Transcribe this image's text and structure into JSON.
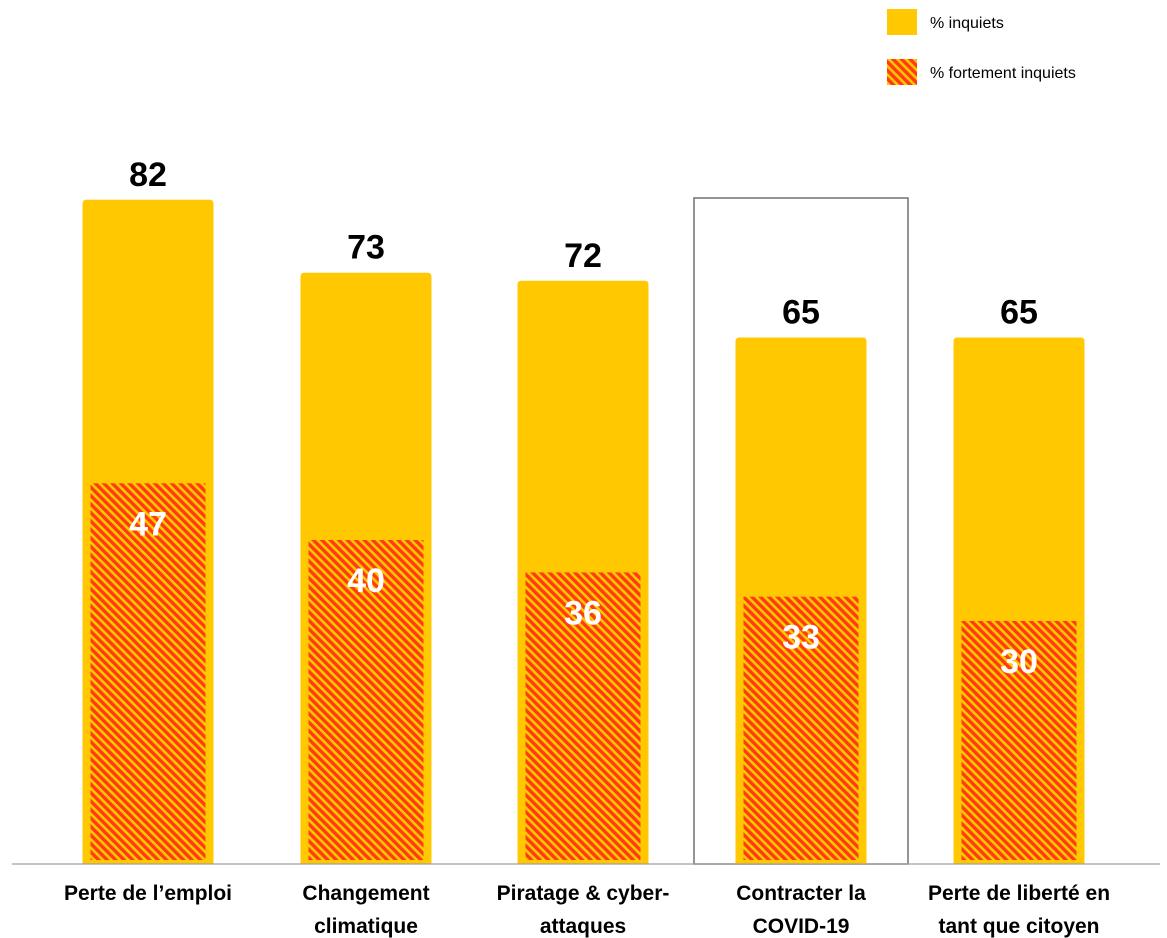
{
  "colors": {
    "inquiets": "#FFC800",
    "fortement_stripe_a": "#FF3B12",
    "fortement_stripe_b": "#FFC800",
    "highlight_border": "#707070",
    "axis": "#A0A0A0"
  },
  "legend": [
    {
      "label": "% inquiets",
      "swatch": "solid"
    },
    {
      "label": "% fortement inquiets",
      "swatch": "hatched"
    }
  ],
  "chart_data": {
    "type": "bar",
    "categories": [
      [
        "Perte de l’emploi"
      ],
      [
        "Changement",
        "climatique"
      ],
      [
        "Piratage & cyber-",
        "attaques"
      ],
      [
        "Contracter la",
        "COVID-19"
      ],
      [
        "Perte de liberté en",
        "tant que citoyen"
      ]
    ],
    "series": [
      {
        "name": "% inquiets",
        "values": [
          82,
          73,
          72,
          65,
          65
        ]
      },
      {
        "name": "% fortement inquiets",
        "values": [
          47,
          40,
          36,
          33,
          30
        ]
      }
    ],
    "highlighted_category_index": 3,
    "ylim": [
      0,
      100
    ],
    "grid": false,
    "legend_position": "top-right"
  }
}
